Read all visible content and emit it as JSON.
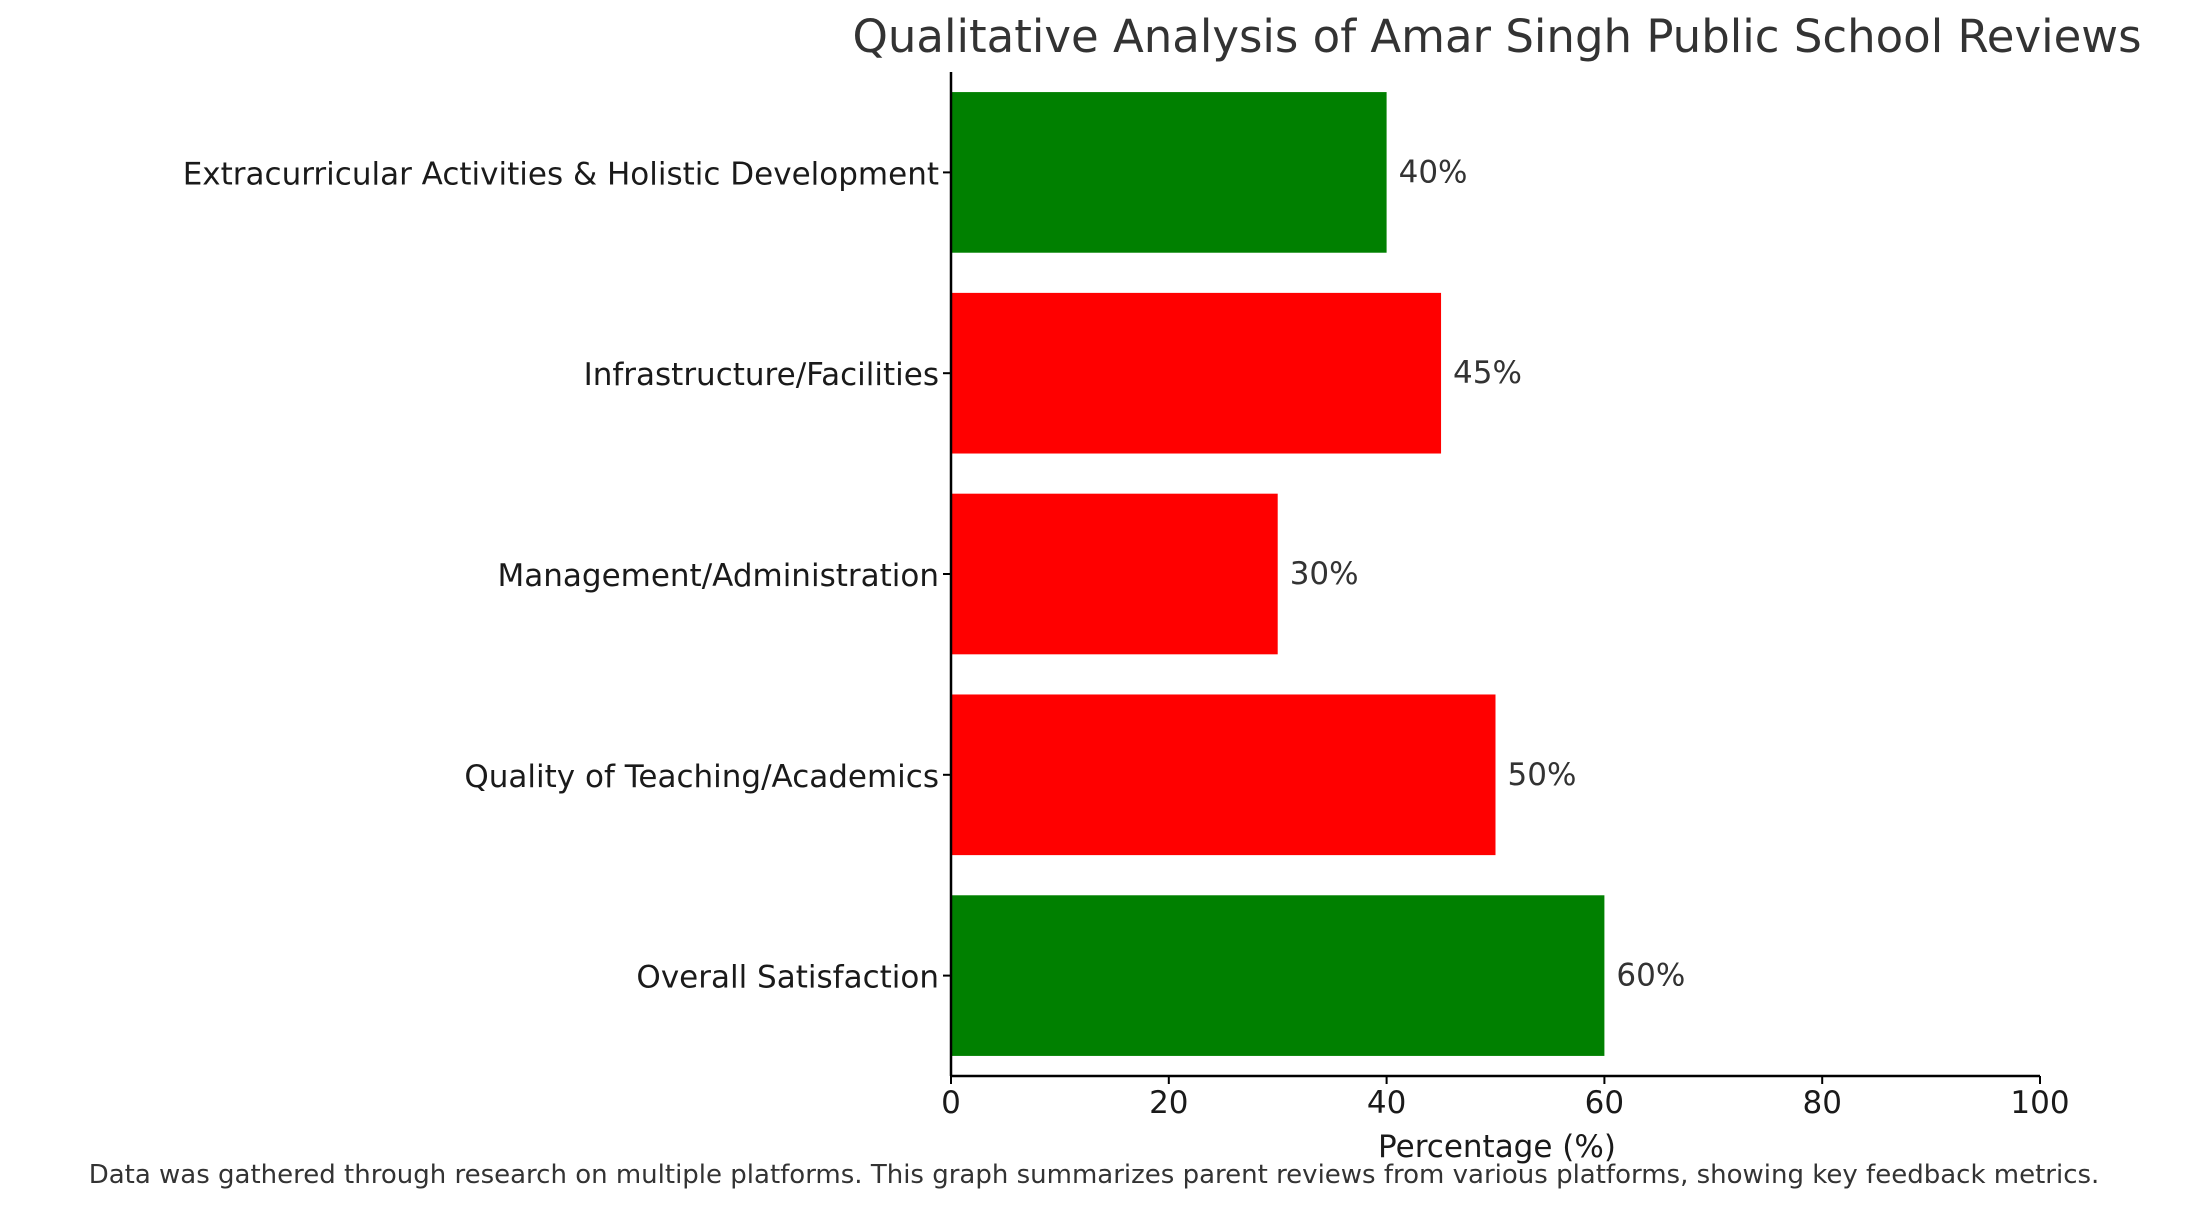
{
  "chart_data": {
    "type": "bar",
    "orientation": "horizontal",
    "title": "Qualitative Analysis of Amar Singh Public School Reviews",
    "xlabel": "Percentage (%)",
    "ylabel": "",
    "xlim": [
      0,
      100
    ],
    "xticks": [
      0,
      20,
      40,
      60,
      80,
      100
    ],
    "categories": [
      "Overall Satisfaction",
      "Quality of Teaching/Academics",
      "Management/Administration",
      "Infrastructure/Facilities",
      "Extracurricular Activities & Holistic Development"
    ],
    "values": [
      60,
      50,
      30,
      45,
      40
    ],
    "data_labels": [
      "60%",
      "50%",
      "30%",
      "45%",
      "40%"
    ],
    "bar_colors": [
      "#008000",
      "#ff0000",
      "#ff0000",
      "#ff0000",
      "#008000"
    ],
    "grid": false,
    "legend": "none"
  },
  "footnote": "Data was gathered through research on multiple platforms. This graph summarizes parent reviews from various platforms, showing key feedback metrics."
}
